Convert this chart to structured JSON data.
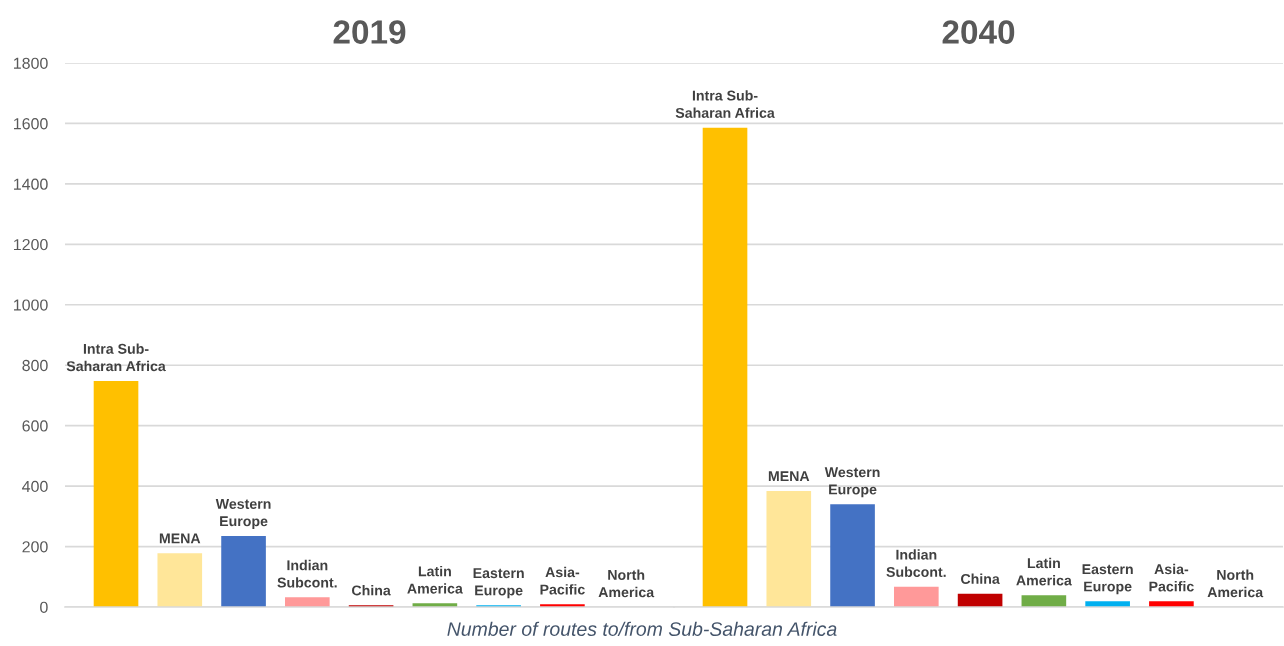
{
  "chart_data": [
    {
      "type": "bar",
      "title": "2019",
      "xlabel": "Number of routes to/from Sub-Saharan Africa",
      "categories": [
        "Intra Sub-\nSaharan Africa",
        "MENA",
        "Western\nEurope",
        "Indian\nSubcont.",
        "China",
        "Latin\nAmerica",
        "Eastern\nEurope",
        "Asia-\nPacific",
        "North\nAmerica"
      ],
      "values": [
        748,
        178,
        235,
        32,
        6,
        12,
        6,
        9,
        0
      ],
      "colors": [
        "#ffc000",
        "#ffe699",
        "#4472c4",
        "#ff9999",
        "#c00000",
        "#70ad47",
        "#00b0f0",
        "#ff0000",
        "#a5a5a5"
      ],
      "ylim": [
        0,
        1800
      ],
      "yticks": [
        0,
        200,
        400,
        600,
        800,
        1000,
        1200,
        1400,
        1600,
        1800
      ],
      "grid": "y"
    },
    {
      "type": "bar",
      "title": "2040",
      "categories": [
        "Intra Sub-\nSaharan Africa",
        "MENA",
        "Western\nEurope",
        "Indian\nSubcont.",
        "China",
        "Latin\nAmerica",
        "Eastern\nEurope",
        "Asia-\nPacific",
        "North\nAmerica"
      ],
      "values": [
        1586,
        384,
        340,
        67,
        44,
        39,
        19,
        19,
        0
      ],
      "colors": [
        "#ffc000",
        "#ffe699",
        "#4472c4",
        "#ff9999",
        "#c00000",
        "#70ad47",
        "#00b0f0",
        "#ff0000",
        "#a5a5a5"
      ],
      "ylim": [
        0,
        1800
      ],
      "yticks": [
        0,
        200,
        400,
        600,
        800,
        1000,
        1200,
        1400,
        1600,
        1800
      ],
      "grid": "y",
      "tick_labels": "x"
    }
  ]
}
